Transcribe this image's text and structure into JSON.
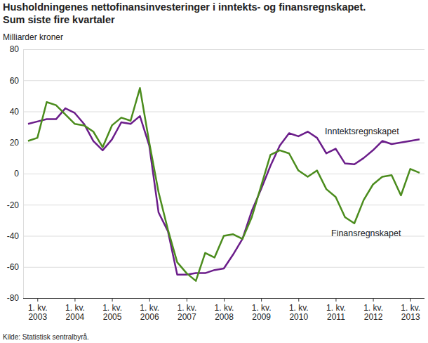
{
  "chart_data": {
    "type": "line",
    "title": "Husholdningenes nettofinansinvesteringer i inntekts- og finansregnskapet.",
    "subtitle": "Sum siste fire kvartaler",
    "y_label": "Milliarder kroner",
    "source": "Kilde: Statistisk sentralbyrå.",
    "categories": [
      null,
      "1. kv.\n2003",
      null,
      null,
      null,
      "1. kv.\n2004",
      null,
      null,
      null,
      "1. kv.\n2005",
      null,
      null,
      null,
      "1. kv.\n2006",
      null,
      null,
      null,
      "1. kv.\n2007",
      null,
      null,
      null,
      "1. kv.\n2008",
      null,
      null,
      null,
      "1. kv.\n2009",
      null,
      null,
      null,
      "1. kv.\n2010",
      null,
      null,
      null,
      "1. kv.\n2011",
      null,
      null,
      null,
      "1. kv.\n2012",
      null,
      null,
      null,
      "1. kv.\n2013",
      null
    ],
    "series": [
      {
        "name": "Inntektsregnskapet",
        "color": "#6b1d8a",
        "values": [
          32,
          33.5,
          35,
          35,
          42,
          39,
          32,
          21,
          15,
          22,
          33,
          32,
          37,
          18,
          -25,
          -37,
          -65,
          -65,
          -64,
          -64,
          -62,
          -61,
          -52,
          -42,
          -24,
          -10,
          5,
          18,
          26,
          24,
          27,
          23,
          13,
          16,
          6.5,
          6,
          10,
          15,
          21,
          19,
          20,
          21,
          22
        ]
      },
      {
        "name": "Finansregnskapet",
        "color": "#4b8c1d",
        "values": [
          21,
          23,
          46,
          44,
          38,
          32,
          31,
          27,
          17,
          31,
          36,
          34,
          55,
          20,
          -12,
          -36,
          -57,
          -64,
          -69,
          -51,
          -54,
          -40,
          -39,
          -42,
          -28,
          -8,
          12,
          15,
          13,
          2,
          -2,
          2,
          -10,
          -15,
          -28,
          -32,
          -17,
          -7,
          -2,
          -1,
          -14,
          3,
          0.5
        ]
      }
    ],
    "ylim": [
      -80,
      80
    ],
    "yticks": [
      -80,
      -60,
      -40,
      -20,
      0,
      20,
      40,
      60,
      80
    ],
    "grid": true
  }
}
